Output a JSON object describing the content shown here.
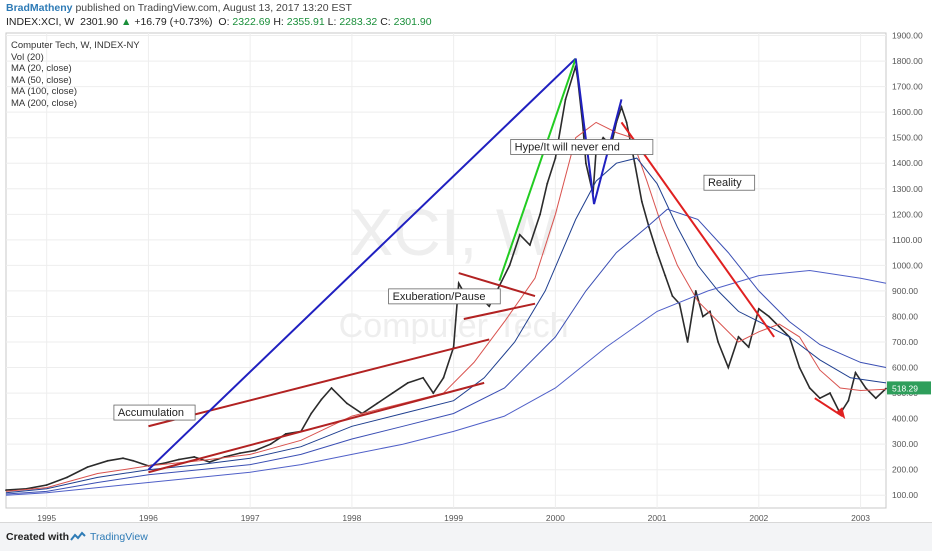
{
  "header": {
    "author": "BradMatheny",
    "published": "published on TradingView.com, August 13, 2017 13:20 EST",
    "symbol": "INDEX:XCI, W",
    "last": "2301.90",
    "change": "+16.79 (+0.73%)",
    "open_label": "O:",
    "open": "2322.69",
    "high_label": "H:",
    "high": "2355.91",
    "low_label": "L:",
    "low": "2283.32",
    "close_label": "C:",
    "close": "2301.90"
  },
  "legend": {
    "title": "Computer Tech, W, INDEX-NY",
    "lines": [
      "Vol (20)",
      "MA (20, close)",
      "MA (50, close)",
      "MA (100, close)",
      "MA (200, close)"
    ]
  },
  "watermark": {
    "symbol": "XCI, W",
    "name": "Computer Tech"
  },
  "footer": {
    "created_with": "Created with",
    "brand": "TradingView"
  },
  "chart_data": {
    "type": "line",
    "title": "Computer Tech, W, INDEX-NY",
    "xlabel": "",
    "ylabel": "",
    "xlim": [
      1994.6,
      2003.25
    ],
    "ylim": [
      50,
      1900
    ],
    "x_ticks": [
      {
        "v": 1995.0,
        "label": "1995"
      },
      {
        "v": 1996.0,
        "label": "1996"
      },
      {
        "v": 1997.0,
        "label": "1997"
      },
      {
        "v": 1998.0,
        "label": "1998"
      },
      {
        "v": 1999.0,
        "label": "1999"
      },
      {
        "v": 2000.0,
        "label": "2000"
      },
      {
        "v": 2001.0,
        "label": "2001"
      },
      {
        "v": 2002.0,
        "label": "2002"
      },
      {
        "v": 2003.0,
        "label": "2003"
      }
    ],
    "y_ticks": [
      "100.00",
      "200.00",
      "300.00",
      "400.00",
      "500.00",
      "600.00",
      "700.00",
      "800.00",
      "900.00",
      "1000.00",
      "1100.00",
      "1200.00",
      "1300.00",
      "1400.00",
      "1500.00",
      "1600.00",
      "1700.00",
      "1800.00",
      "1900.00"
    ],
    "y_tick_values": [
      100,
      200,
      300,
      400,
      500,
      600,
      700,
      800,
      900,
      1000,
      1100,
      1200,
      1300,
      1400,
      1500,
      1600,
      1700,
      1800,
      1900
    ],
    "price_label": {
      "value": 518.29,
      "text": "518.29",
      "color": "#2e9e5b"
    },
    "grid": true,
    "series": [
      {
        "color": "#2b2b2b",
        "x": [
          1994.6,
          1994.8,
          1995.0,
          1995.2,
          1995.4,
          1995.6,
          1995.75,
          1995.85,
          1996.0,
          1996.15,
          1996.3,
          1996.45,
          1996.6,
          1996.75,
          1996.9,
          1997.05,
          1997.2,
          1997.35,
          1997.5,
          1997.6,
          1997.7,
          1997.8,
          1997.95,
          1998.1,
          1998.25,
          1998.4,
          1998.55,
          1998.7,
          1998.8,
          1998.9,
          1999.0,
          1999.05,
          1999.15,
          1999.25,
          1999.35,
          1999.45,
          1999.55,
          1999.65,
          1999.75,
          1999.85,
          1999.92,
          2000.0,
          2000.1,
          2000.2,
          2000.22,
          2000.27,
          2000.3,
          2000.37,
          2000.4,
          2000.47,
          2000.55,
          2000.6,
          2000.65,
          2000.7,
          2000.78,
          2000.85,
          2000.92,
          2001.0,
          2001.08,
          2001.15,
          2001.22,
          2001.3,
          2001.38,
          2001.45,
          2001.52,
          2001.6,
          2001.7,
          2001.8,
          2001.9,
          2002.0,
          2002.1,
          2002.2,
          2002.3,
          2002.4,
          2002.5,
          2002.6,
          2002.7,
          2002.8,
          2002.88,
          2002.95,
          2003.05,
          2003.15,
          2003.25
        ],
        "values": [
          120,
          125,
          140,
          170,
          210,
          235,
          245,
          235,
          215,
          225,
          240,
          250,
          230,
          250,
          265,
          275,
          300,
          340,
          350,
          420,
          475,
          520,
          460,
          420,
          460,
          500,
          540,
          560,
          500,
          560,
          680,
          930,
          860,
          880,
          840,
          920,
          1000,
          1120,
          1080,
          1200,
          1320,
          1420,
          1650,
          1780,
          1730,
          1550,
          1400,
          1280,
          1450,
          1500,
          1470,
          1560,
          1620,
          1560,
          1400,
          1250,
          1150,
          1050,
          960,
          880,
          850,
          700,
          900,
          800,
          820,
          700,
          600,
          720,
          680,
          830,
          800,
          760,
          720,
          600,
          520,
          480,
          500,
          420,
          470,
          580,
          520,
          480,
          518
        ]
      },
      {
        "color": "#d9534f",
        "x": [
          1994.6,
          1995.0,
          1995.5,
          1996.0,
          1996.5,
          1997.0,
          1997.5,
          1998.0,
          1998.5,
          1998.9,
          1999.2,
          1999.5,
          1999.8,
          2000.0,
          2000.2,
          2000.4,
          2000.6,
          2000.75,
          2000.9,
          2001.05,
          2001.2,
          2001.4,
          2001.6,
          2001.8,
          2002.0,
          2002.2,
          2002.4,
          2002.6,
          2002.8,
          2003.0,
          2003.25
        ],
        "values": [
          115,
          130,
          185,
          215,
          235,
          260,
          315,
          410,
          460,
          500,
          620,
          780,
          950,
          1200,
          1500,
          1560,
          1520,
          1500,
          1330,
          1150,
          1000,
          860,
          780,
          700,
          740,
          770,
          720,
          590,
          520,
          510,
          515
        ]
      },
      {
        "color": "#1f3f8f",
        "x": [
          1994.6,
          1995.0,
          1995.5,
          1996.0,
          1996.5,
          1997.0,
          1997.5,
          1998.0,
          1998.5,
          1999.0,
          1999.3,
          1999.6,
          1999.9,
          2000.2,
          2000.4,
          2000.6,
          2000.8,
          2001.0,
          2001.2,
          2001.4,
          2001.6,
          2001.8,
          2002.0,
          2002.3,
          2002.6,
          2002.9,
          2003.25
        ],
        "values": [
          110,
          125,
          170,
          200,
          220,
          245,
          290,
          370,
          420,
          470,
          560,
          700,
          900,
          1180,
          1330,
          1400,
          1420,
          1320,
          1150,
          1000,
          900,
          820,
          780,
          720,
          630,
          560,
          540
        ]
      },
      {
        "color": "#3b4fb4",
        "x": [
          1994.6,
          1995.0,
          1995.5,
          1996.0,
          1996.5,
          1997.0,
          1997.5,
          1998.0,
          1998.5,
          1999.0,
          1999.5,
          2000.0,
          2000.3,
          2000.6,
          2000.9,
          2001.1,
          2001.4,
          2001.7,
          2002.0,
          2002.3,
          2002.6,
          2003.0,
          2003.25
        ],
        "values": [
          105,
          115,
          150,
          180,
          200,
          220,
          260,
          320,
          370,
          420,
          520,
          720,
          900,
          1050,
          1150,
          1220,
          1180,
          1050,
          900,
          780,
          690,
          620,
          600
        ]
      },
      {
        "color": "#5060c8",
        "x": [
          1994.6,
          1995.0,
          1995.5,
          1996.0,
          1996.5,
          1997.0,
          1997.5,
          1998.0,
          1998.5,
          1999.0,
          1999.5,
          2000.0,
          2000.5,
          2001.0,
          2001.5,
          2002.0,
          2002.5,
          2003.0,
          2003.25
        ],
        "values": [
          100,
          110,
          130,
          150,
          170,
          190,
          220,
          260,
          300,
          350,
          410,
          520,
          680,
          820,
          900,
          960,
          980,
          950,
          930
        ]
      }
    ],
    "annotations": [
      {
        "text": "Accumulation",
        "x": 1995.7,
        "y": 410
      },
      {
        "text": "Exuberation/Pause",
        "x": 1998.4,
        "y": 865
      },
      {
        "text": "Hype/It will never end",
        "x": 1999.6,
        "y": 1450
      },
      {
        "text": "Reality",
        "x": 2001.5,
        "y": 1310
      }
    ],
    "trend_lines": [
      {
        "color": "#b22222",
        "x": [
          1996.0,
          1999.35
        ],
        "values": [
          370,
          710
        ]
      },
      {
        "color": "#b22222",
        "x": [
          1996.0,
          1999.3
        ],
        "values": [
          190,
          540
        ]
      },
      {
        "color": "#b22222",
        "x": [
          1999.05,
          1999.8
        ],
        "values": [
          970,
          880
        ]
      },
      {
        "color": "#b22222",
        "x": [
          1999.1,
          1999.8
        ],
        "values": [
          790,
          850
        ]
      },
      {
        "color": "#2020c0",
        "x": [
          1996.0,
          2000.2
        ],
        "values": [
          200,
          1810
        ]
      },
      {
        "color": "#22cc22",
        "x": [
          1999.45,
          2000.2
        ],
        "values": [
          940,
          1810
        ]
      },
      {
        "color": "#2020c0",
        "x": [
          2000.2,
          2000.38
        ],
        "values": [
          1810,
          1240
        ]
      },
      {
        "color": "#2020c0",
        "x": [
          2000.38,
          2000.65
        ],
        "values": [
          1240,
          1650
        ]
      },
      {
        "color": "#e02020",
        "x": [
          2000.65,
          2002.15
        ],
        "values": [
          1560,
          720
        ]
      },
      {
        "color": "#e02020",
        "x": [
          2002.55,
          2002.82
        ],
        "values": [
          480,
          410
        ]
      }
    ]
  }
}
